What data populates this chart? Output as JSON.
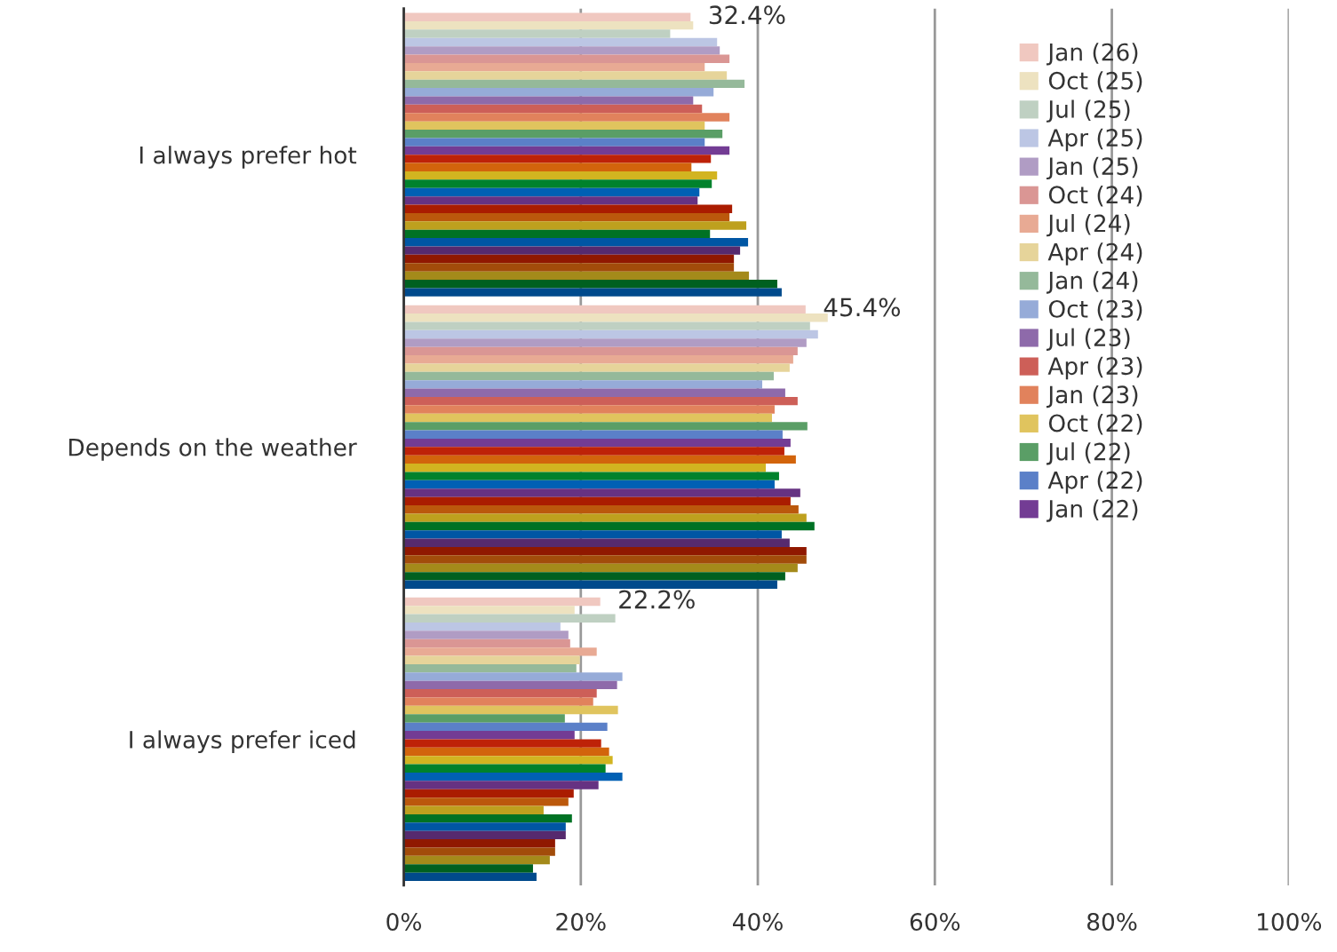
{
  "chart_data": {
    "type": "bar",
    "orientation": "horizontal",
    "categories": [
      "I always prefer hot",
      "Depends on the weather",
      "I always prefer iced"
    ],
    "xlim": [
      0,
      100
    ],
    "xticks": [
      {
        "value": 0,
        "label": "0%"
      },
      {
        "value": 20,
        "label": "20%"
      },
      {
        "value": 40,
        "label": "40%"
      },
      {
        "value": 60,
        "label": "60%"
      },
      {
        "value": 80,
        "label": "80%"
      },
      {
        "value": 100,
        "label": "100%"
      }
    ],
    "grid": "x",
    "legend": "top right",
    "series": [
      {
        "name": "Jan (26)",
        "color": "#f0c8c0",
        "values": [
          32.4,
          45.4,
          22.2
        ],
        "value_labels": [
          "32.4%",
          "45.4%",
          "22.2%"
        ]
      },
      {
        "name": "Oct (25)",
        "color": "#ede2c0",
        "values": [
          32.7,
          47.9,
          19.3
        ]
      },
      {
        "name": "Jul (25)",
        "color": "#bfd0c2",
        "values": [
          30.1,
          45.9,
          23.9
        ]
      },
      {
        "name": "Apr (25)",
        "color": "#bcc6e4",
        "values": [
          35.4,
          46.8,
          17.7
        ]
      },
      {
        "name": "Jan (25)",
        "color": "#b09cc4",
        "values": [
          35.7,
          45.5,
          18.6
        ]
      },
      {
        "name": "Oct (24)",
        "color": "#da9694",
        "values": [
          36.8,
          44.5,
          18.8
        ]
      },
      {
        "name": "Jul (24)",
        "color": "#e8aa94",
        "values": [
          34.0,
          44.0,
          21.8
        ]
      },
      {
        "name": "Apr (24)",
        "color": "#e6d49a",
        "values": [
          36.5,
          43.6,
          19.9
        ]
      },
      {
        "name": "Jan (24)",
        "color": "#95b99a",
        "values": [
          38.5,
          41.8,
          19.5
        ]
      },
      {
        "name": "Oct (23)",
        "color": "#96abd8",
        "values": [
          35.0,
          40.5,
          24.7
        ]
      },
      {
        "name": "Jul (23)",
        "color": "#8e6aaa",
        "values": [
          32.7,
          43.1,
          24.1
        ]
      },
      {
        "name": "Apr (23)",
        "color": "#cd5f58",
        "values": [
          33.7,
          44.5,
          21.8
        ]
      },
      {
        "name": "Jan (23)",
        "color": "#e1825c",
        "values": [
          36.8,
          41.9,
          21.4
        ]
      },
      {
        "name": "Oct (22)",
        "color": "#e0c45e",
        "values": [
          34.0,
          41.6,
          24.2
        ]
      },
      {
        "name": "Jul (22)",
        "color": "#5a9e66",
        "values": [
          36.0,
          45.6,
          18.2
        ]
      },
      {
        "name": "Apr (22)",
        "color": "#5b80c8",
        "values": [
          34.0,
          42.8,
          23.0
        ]
      },
      {
        "name": "Jan (22)",
        "color": "#733c94",
        "values": [
          36.8,
          43.7,
          19.3
        ]
      },
      {
        "color": "#be2208",
        "values": [
          34.7,
          43.0,
          22.3
        ]
      },
      {
        "color": "#d2640c",
        "values": [
          32.5,
          44.3,
          23.2
        ]
      },
      {
        "color": "#d2b420",
        "values": [
          35.4,
          40.9,
          23.6
        ]
      },
      {
        "color": "#00822c",
        "values": [
          34.8,
          42.4,
          22.8
        ]
      },
      {
        "color": "#0060b4",
        "values": [
          33.4,
          41.9,
          24.7
        ]
      },
      {
        "color": "#663282",
        "values": [
          33.2,
          44.8,
          22.0
        ]
      },
      {
        "color": "#aa1c00",
        "values": [
          37.1,
          43.7,
          19.2
        ]
      },
      {
        "color": "#bb580c",
        "values": [
          36.8,
          44.6,
          18.6
        ]
      },
      {
        "color": "#bea01e",
        "values": [
          38.7,
          45.5,
          15.8
        ]
      },
      {
        "color": "#007224",
        "values": [
          34.6,
          46.4,
          19.0
        ]
      },
      {
        "color": "#0056a4",
        "values": [
          38.9,
          42.7,
          18.3
        ]
      },
      {
        "color": "#562a6e",
        "values": [
          38.0,
          43.6,
          18.3
        ]
      },
      {
        "color": "#901800",
        "values": [
          37.3,
          45.5,
          17.1
        ]
      },
      {
        "color": "#a24c0a",
        "values": [
          37.3,
          45.5,
          17.1
        ]
      },
      {
        "color": "#a48a1a",
        "values": [
          39.0,
          44.5,
          16.5
        ]
      },
      {
        "color": "#006020",
        "values": [
          42.2,
          43.1,
          14.6
        ]
      },
      {
        "color": "#004a8c",
        "values": [
          42.7,
          42.2,
          15.0
        ]
      }
    ]
  }
}
